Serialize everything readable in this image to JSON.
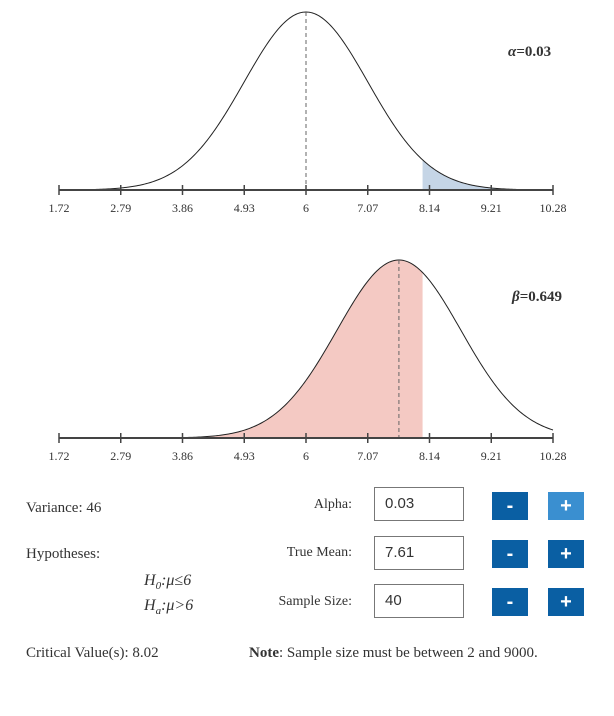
{
  "chart_data": [
    {
      "type": "area",
      "title": "",
      "distribution": "normal",
      "mean": 6,
      "sd": 1.072,
      "shaded": "right-tail",
      "shade_from": 8.02,
      "shade_color": "#c5d5e6",
      "xlim": [
        1.72,
        10.28
      ],
      "ticks": [
        "1.72",
        "2.79",
        "3.86",
        "4.93",
        "6",
        "7.07",
        "8.14",
        "9.21",
        "10.28"
      ],
      "annotation": {
        "symbol": "α",
        "text": "=0.03"
      }
    },
    {
      "type": "area",
      "title": "",
      "distribution": "normal",
      "mean": 7.61,
      "sd": 1.072,
      "shaded": "left",
      "shade_to": 8.02,
      "shade_color": "#f4c9c3",
      "xlim": [
        1.72,
        10.28
      ],
      "ticks": [
        "1.72",
        "2.79",
        "3.86",
        "4.93",
        "6",
        "7.07",
        "8.14",
        "9.21",
        "10.28"
      ],
      "annotation": {
        "symbol": "β",
        "text": "=0.649"
      }
    }
  ],
  "info": {
    "variance": "Variance: 46",
    "hypotheses_label": "Hypotheses:",
    "h0": {
      "lhs": "H",
      "sub": "0",
      "rel": ":μ≤6"
    },
    "ha": {
      "lhs": "H",
      "sub": "a",
      "rel": ":μ>6"
    },
    "critical": "Critical Value(s): 8.02"
  },
  "controls": [
    {
      "label": "Alpha:",
      "value": "0.03",
      "minus": "-",
      "plus": "+"
    },
    {
      "label": "True Mean:",
      "value": "7.61",
      "minus": "-",
      "plus": "+"
    },
    {
      "label": "Sample Size:",
      "value": "40",
      "minus": "-",
      "plus": "+"
    }
  ],
  "note": {
    "bold": "Note",
    "text": ": Sample size must be between 2 and 9000."
  }
}
